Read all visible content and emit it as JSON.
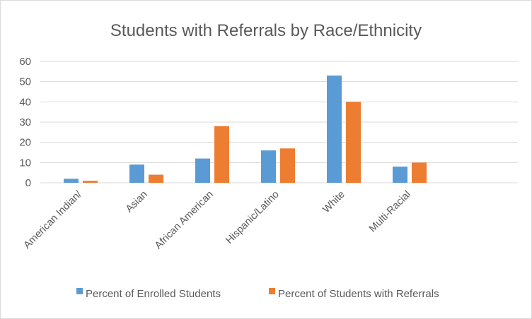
{
  "chart_data": {
    "type": "bar",
    "title": "Students with Referrals by Race/Ethnicity",
    "xlabel": "",
    "ylabel": "",
    "categories": [
      "American Indian/",
      "Asian",
      "African American",
      "Hispanic/Latino",
      "White",
      "Multi-Racial"
    ],
    "series": [
      {
        "name": "Percent of Enrolled Students",
        "values": [
          2,
          9,
          12,
          16,
          53,
          8
        ],
        "color": "#5b9bd5"
      },
      {
        "name": "Percent of Students with Referrals",
        "values": [
          1,
          4,
          28,
          17,
          40,
          10
        ],
        "color": "#ed7d31"
      }
    ],
    "ylim": [
      0,
      60
    ],
    "yticks": [
      0,
      10,
      20,
      30,
      40,
      50,
      60
    ],
    "grid": true,
    "legend_position": "bottom",
    "gridline_color": "#d9d9d9"
  }
}
